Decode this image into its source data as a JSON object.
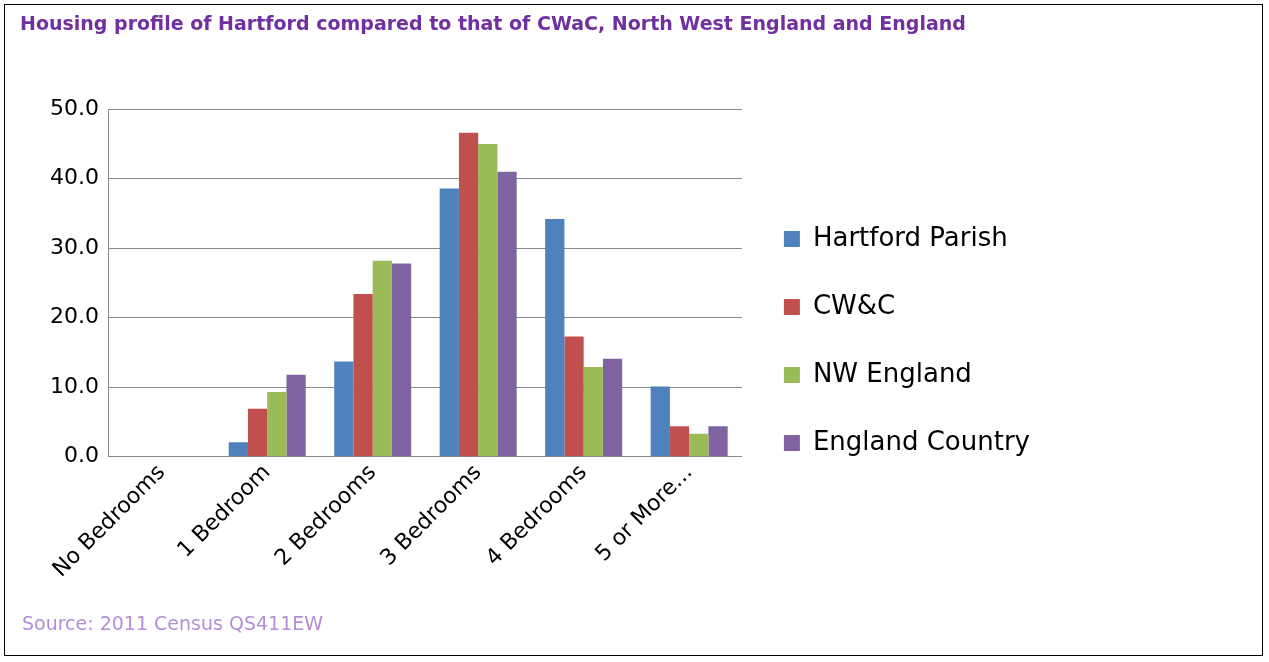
{
  "chart_data": {
    "type": "bar",
    "title": "Housing profile of Hartford compared to that of CWaC, North West England and England",
    "categories": [
      "No Bedrooms",
      "1 Bedroom",
      "2 Bedrooms",
      "3 Bedrooms",
      "4 Bedrooms",
      "5 or More..."
    ],
    "series": [
      {
        "name": "Hartford Parish",
        "color": "#4f81bd",
        "values": [
          0,
          2.1,
          13.7,
          38.6,
          34.2,
          10.1
        ]
      },
      {
        "name": "CW&C",
        "color": "#c0504d",
        "values": [
          0,
          6.9,
          23.4,
          46.6,
          17.3,
          4.4
        ]
      },
      {
        "name": "NW England",
        "color": "#9bbb59",
        "values": [
          0,
          9.3,
          28.2,
          45.0,
          12.9,
          3.3
        ]
      },
      {
        "name": "England Country",
        "color": "#8064a2",
        "values": [
          0,
          11.8,
          27.8,
          41.0,
          14.1,
          4.4
        ]
      }
    ],
    "ylim": [
      0,
      50
    ],
    "yticks": [
      {
        "value": 0,
        "label": "0.0"
      },
      {
        "value": 10,
        "label": "10.0"
      },
      {
        "value": 20,
        "label": "20.0"
      },
      {
        "value": 30,
        "label": "30.0"
      },
      {
        "value": 40,
        "label": "40.0"
      },
      {
        "value": 50,
        "label": "50.0"
      }
    ],
    "grid": "y",
    "legend": "right",
    "annotations": [
      "Source: 2011 Census QS411EW"
    ]
  }
}
